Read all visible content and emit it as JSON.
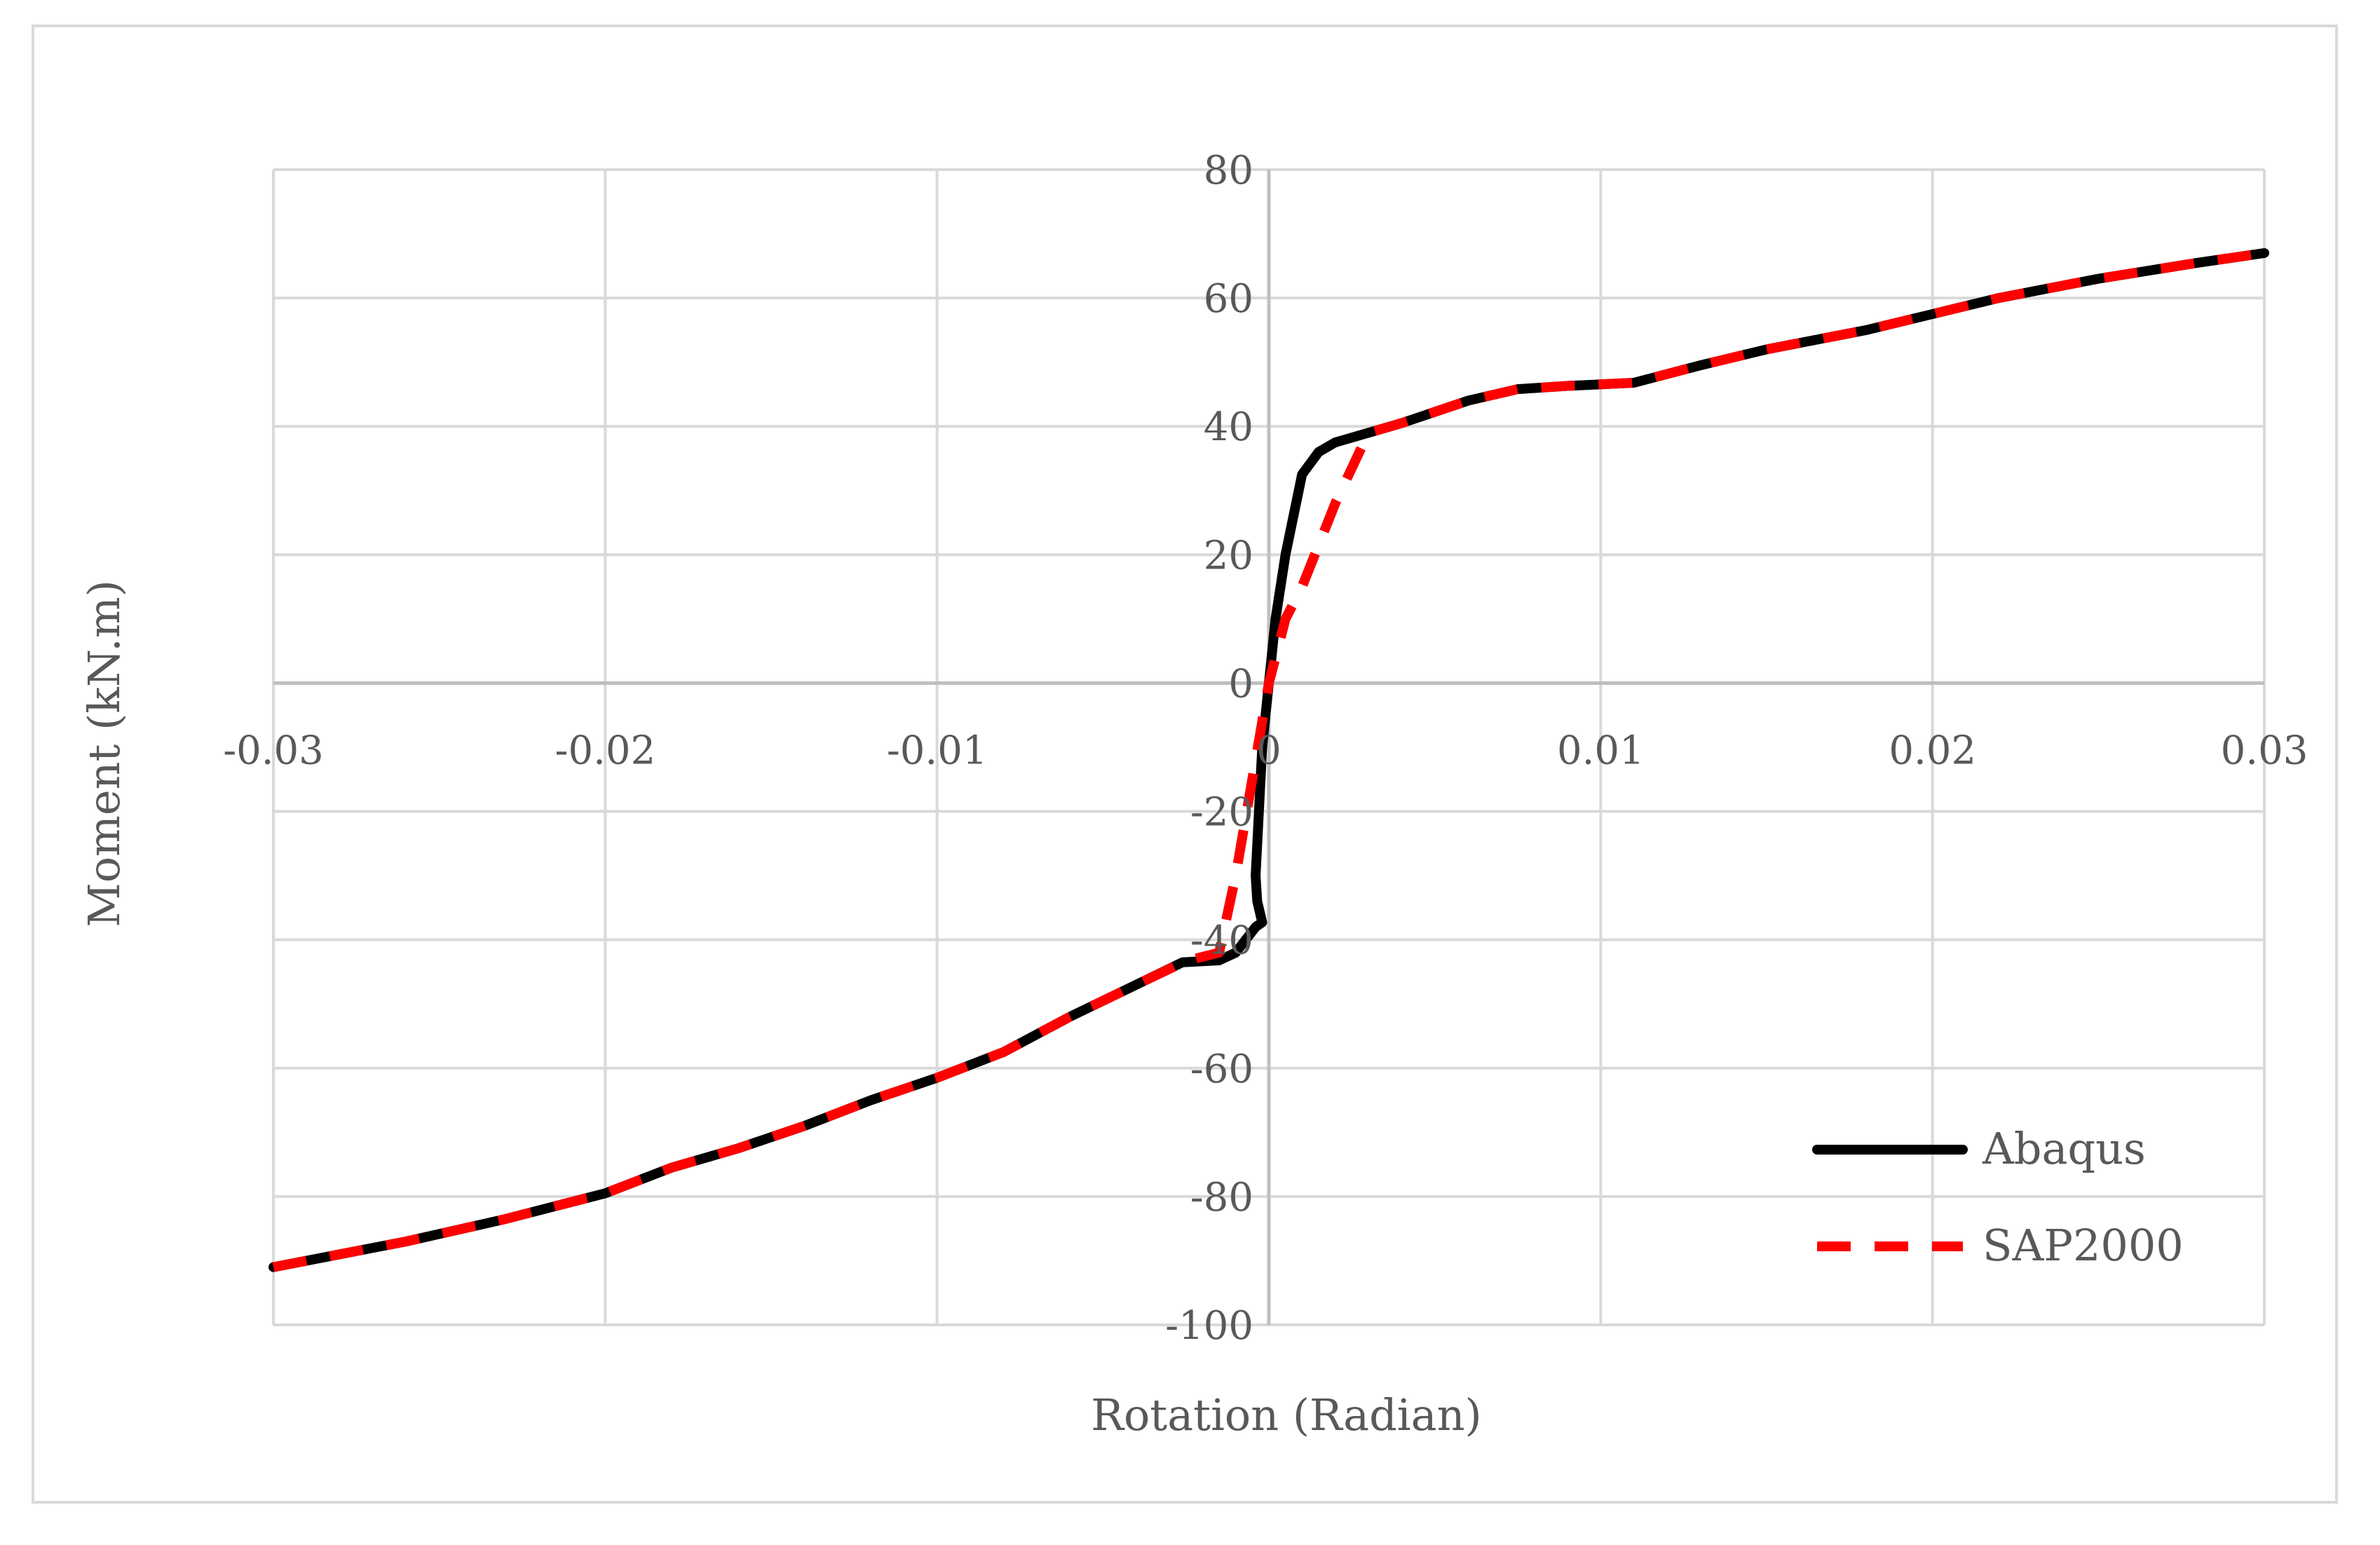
{
  "chart_data": {
    "type": "line",
    "title": "",
    "xlabel": "Rotation (Radian)",
    "ylabel": "Moment (kN.m)",
    "xlim": [
      -0.03,
      0.03
    ],
    "ylim": [
      -100,
      80
    ],
    "x_ticks": [
      -0.03,
      -0.02,
      -0.01,
      0,
      0.01,
      0.02,
      0.03
    ],
    "x_tick_labels": [
      "-0.03",
      "-0.02",
      "-0.01",
      "0",
      "0.01",
      "0.02",
      "0.03"
    ],
    "y_ticks": [
      80,
      60,
      40,
      20,
      0,
      -20,
      -40,
      -60,
      -80,
      -100
    ],
    "y_tick_labels": [
      "80",
      "60",
      "40",
      "20",
      "0",
      "-20",
      "-40",
      "-60",
      "-80",
      "-100"
    ],
    "grid": true,
    "legend_position": "bottom-right",
    "series": [
      {
        "name": "Abaqus",
        "color": "#000000",
        "style": "solid",
        "points": [
          [
            -0.03,
            -91
          ],
          [
            -0.026,
            -87
          ],
          [
            -0.023,
            -83.5
          ],
          [
            -0.02,
            -79.5
          ],
          [
            -0.018,
            -75.5
          ],
          [
            -0.016,
            -72.5
          ],
          [
            -0.014,
            -69
          ],
          [
            -0.012,
            -65
          ],
          [
            -0.01,
            -61.5
          ],
          [
            -0.008,
            -57.5
          ],
          [
            -0.006,
            -52
          ],
          [
            -0.004,
            -47
          ],
          [
            -0.0026,
            -43.5
          ],
          [
            -0.0015,
            -43.2
          ],
          [
            -0.001,
            -42
          ],
          [
            -0.0007,
            -40
          ],
          [
            -0.0004,
            -38
          ],
          [
            -0.0002,
            -37.3
          ],
          [
            -0.00035,
            -34
          ],
          [
            -0.0004,
            -30
          ],
          [
            -0.0003,
            -20
          ],
          [
            -0.0002,
            -10
          ],
          [
            0,
            0
          ],
          [
            0.0002,
            10
          ],
          [
            0.0005,
            20
          ],
          [
            0.0009,
            30
          ],
          [
            0.001,
            32.5
          ],
          [
            0.0015,
            36
          ],
          [
            0.002,
            37.5
          ],
          [
            0.003,
            39
          ],
          [
            0.004,
            40.5
          ],
          [
            0.006,
            44
          ],
          [
            0.0075,
            45.8
          ],
          [
            0.009,
            46.3
          ],
          [
            0.011,
            46.8
          ],
          [
            0.013,
            49.5
          ],
          [
            0.015,
            52
          ],
          [
            0.018,
            55
          ],
          [
            0.02,
            57.5
          ],
          [
            0.022,
            60
          ],
          [
            0.025,
            63
          ],
          [
            0.028,
            65.5
          ],
          [
            0.03,
            67
          ]
        ]
      },
      {
        "name": "SAP2000",
        "color": "#ff0000",
        "style": "dashed",
        "points": [
          [
            -0.03,
            -91
          ],
          [
            -0.026,
            -87
          ],
          [
            -0.023,
            -83.5
          ],
          [
            -0.02,
            -79.5
          ],
          [
            -0.018,
            -75.5
          ],
          [
            -0.016,
            -72.5
          ],
          [
            -0.014,
            -69
          ],
          [
            -0.012,
            -65
          ],
          [
            -0.01,
            -61.5
          ],
          [
            -0.008,
            -57.5
          ],
          [
            -0.006,
            -52
          ],
          [
            -0.004,
            -47
          ],
          [
            -0.0025,
            -43.3
          ],
          [
            -0.0015,
            -42
          ],
          [
            -0.001,
            -30
          ],
          [
            -0.0005,
            -15
          ],
          [
            0,
            0
          ],
          [
            0.0005,
            10
          ],
          [
            0.001,
            15
          ],
          [
            0.002,
            28
          ],
          [
            0.003,
            39
          ],
          [
            0.004,
            40.5
          ],
          [
            0.006,
            44
          ],
          [
            0.0075,
            45.8
          ],
          [
            0.009,
            46.3
          ],
          [
            0.011,
            46.8
          ],
          [
            0.013,
            49.5
          ],
          [
            0.015,
            52
          ],
          [
            0.018,
            55
          ],
          [
            0.02,
            57.5
          ],
          [
            0.022,
            60
          ],
          [
            0.025,
            63
          ],
          [
            0.028,
            65.5
          ],
          [
            0.03,
            67
          ]
        ]
      }
    ]
  },
  "legend": {
    "items": [
      {
        "label": "Abaqus",
        "color": "#000000",
        "style": "solid"
      },
      {
        "label": "SAP2000",
        "color": "#ff0000",
        "style": "dashed"
      }
    ]
  },
  "colors": {
    "grid": "#d9d9d9",
    "axis": "#bfbfbf",
    "text": "#595959",
    "border": "#d9d9d9"
  }
}
